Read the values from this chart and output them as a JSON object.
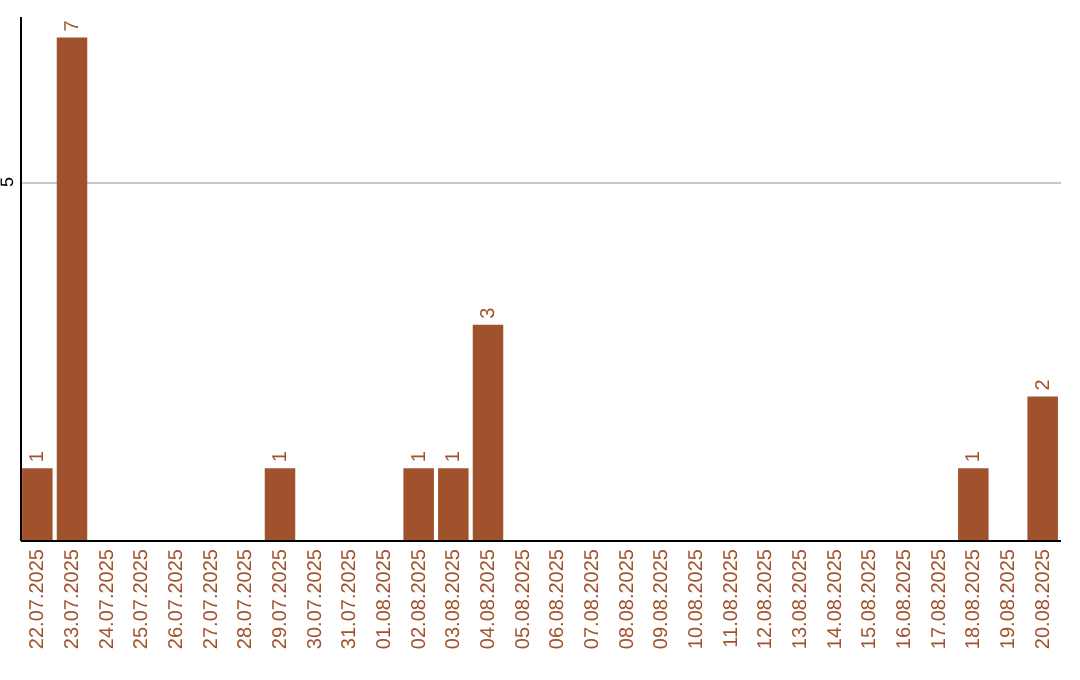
{
  "chart_data": {
    "type": "bar",
    "categories": [
      "22.07.2025",
      "23.07.2025",
      "24.07.2025",
      "25.07.2025",
      "26.07.2025",
      "27.07.2025",
      "28.07.2025",
      "29.07.2025",
      "30.07.2025",
      "31.07.2025",
      "01.08.2025",
      "02.08.2025",
      "03.08.2025",
      "04.08.2025",
      "05.08.2025",
      "06.08.2025",
      "07.08.2025",
      "08.08.2025",
      "09.08.2025",
      "10.08.2025",
      "11.08.2025",
      "12.08.2025",
      "13.08.2025",
      "14.08.2025",
      "15.08.2025",
      "16.08.2025",
      "17.08.2025",
      "18.08.2025",
      "19.08.2025",
      "20.08.2025"
    ],
    "values": [
      1,
      7,
      0,
      0,
      0,
      0,
      0,
      1,
      0,
      0,
      0,
      1,
      1,
      3,
      0,
      0,
      0,
      0,
      0,
      0,
      0,
      0,
      0,
      0,
      0,
      0,
      0,
      1,
      0,
      2
    ],
    "value_labels": [
      "1",
      "7",
      null,
      null,
      null,
      null,
      null,
      "1",
      null,
      null,
      null,
      "1",
      "1",
      "3",
      null,
      null,
      null,
      null,
      null,
      null,
      null,
      null,
      null,
      null,
      null,
      null,
      null,
      "1",
      null,
      "2"
    ],
    "color": "#a0522d",
    "ylim": [
      0,
      7.3
    ],
    "yticks": [
      5
    ],
    "grid": "y"
  }
}
